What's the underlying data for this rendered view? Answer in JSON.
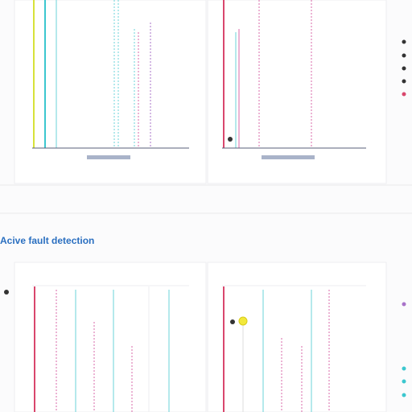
{
  "section": {
    "title": "Acive fault detection"
  }
}
